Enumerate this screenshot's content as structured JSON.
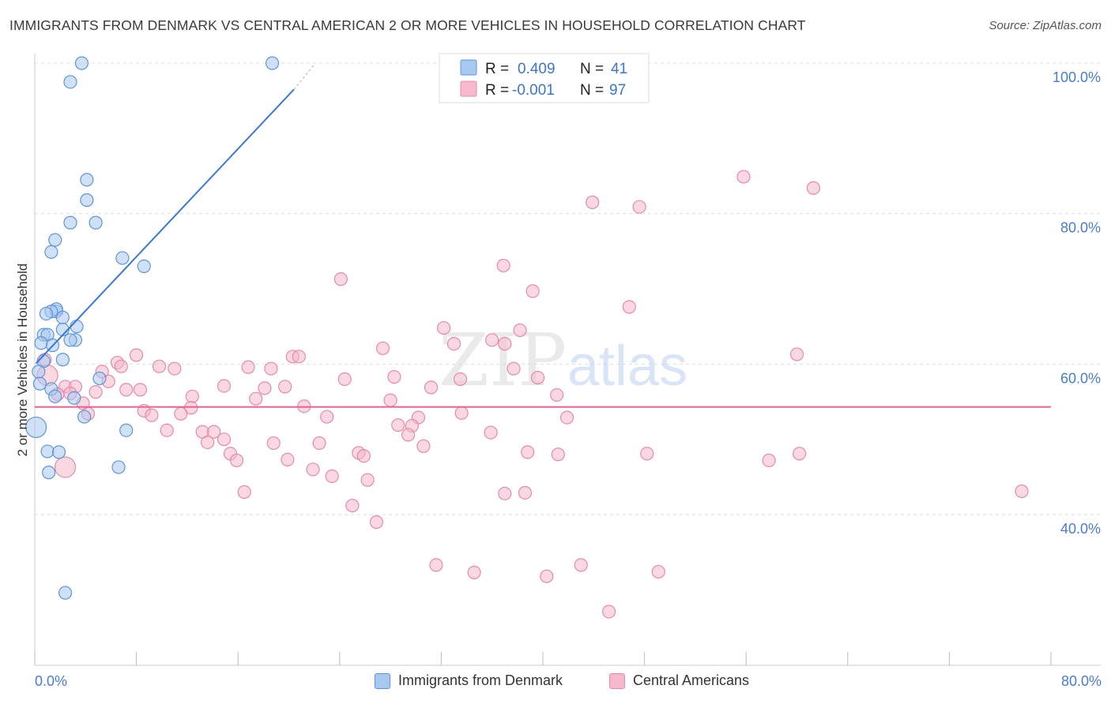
{
  "title": "IMMIGRANTS FROM DENMARK VS CENTRAL AMERICAN 2 OR MORE VEHICLES IN HOUSEHOLD CORRELATION CHART",
  "source": "Source: ZipAtlas.com",
  "watermark": {
    "zip": "ZIP",
    "atlas": "atlas"
  },
  "colors": {
    "blue_fill": "#a9c8f0",
    "blue_stroke": "#5f94d8",
    "blue_line": "#3a78d0",
    "pink_fill": "#f6b8cb",
    "pink_stroke": "#e58aa8",
    "pink_line": "#e06490",
    "tick_text": "#4a7cc9",
    "grid": "#dddddd"
  },
  "legend": {
    "rows": [
      {
        "r_label": "R =",
        "r_value": "0.409",
        "n_label": "N =",
        "n_value": "41",
        "series": "blue"
      },
      {
        "r_label": "R =",
        "r_value": "-0.001",
        "n_label": "N =",
        "n_value": "97",
        "series": "pink"
      }
    ]
  },
  "bottom_legend": {
    "blue_label": "Immigrants from Denmark",
    "pink_label": "Central Americans"
  },
  "chart_data": {
    "type": "scatter",
    "xlabel": "",
    "ylabel": "2 or more Vehicles in Household",
    "xlim": [
      0,
      80
    ],
    "ylim": [
      20,
      102
    ],
    "x_tick_labels": [
      "0.0%",
      "80.0%"
    ],
    "y_ticks": [
      40,
      60,
      80,
      100
    ],
    "y_tick_labels": [
      "40.0%",
      "60.0%",
      "80.0%",
      "100.0%"
    ],
    "grid": "horizontal dashed",
    "legend_placement": "top-center",
    "series": [
      {
        "name": "Immigrants from Denmark",
        "color": "blue",
        "R": 0.409,
        "N": 41,
        "trend": {
          "x": [
            0.1,
            20.4
          ],
          "y": [
            60.1,
            96.5
          ],
          "dashed_extension": {
            "x": [
              20.4,
              22.0
            ],
            "y": [
              96.5,
              99.8
            ]
          }
        },
        "points": [
          {
            "x": 3.7,
            "y": 100
          },
          {
            "x": 18.7,
            "y": 100
          },
          {
            "x": 2.8,
            "y": 97.5
          },
          {
            "x": 4.1,
            "y": 84.5
          },
          {
            "x": 4.1,
            "y": 81.8
          },
          {
            "x": 2.8,
            "y": 78.8
          },
          {
            "x": 4.8,
            "y": 78.8
          },
          {
            "x": 1.6,
            "y": 76.5
          },
          {
            "x": 1.3,
            "y": 74.9
          },
          {
            "x": 6.9,
            "y": 74.1
          },
          {
            "x": 8.6,
            "y": 73.0
          },
          {
            "x": 1.7,
            "y": 67.0
          },
          {
            "x": 1.7,
            "y": 67.3
          },
          {
            "x": 1.3,
            "y": 67.0
          },
          {
            "x": 0.9,
            "y": 66.7
          },
          {
            "x": 2.2,
            "y": 66.2
          },
          {
            "x": 3.3,
            "y": 65.0
          },
          {
            "x": 2.2,
            "y": 64.6
          },
          {
            "x": 0.7,
            "y": 63.9
          },
          {
            "x": 1.0,
            "y": 63.9
          },
          {
            "x": 3.2,
            "y": 63.2
          },
          {
            "x": 2.8,
            "y": 63.2
          },
          {
            "x": 0.5,
            "y": 62.8
          },
          {
            "x": 1.4,
            "y": 62.5
          },
          {
            "x": 2.2,
            "y": 60.6
          },
          {
            "x": 0.7,
            "y": 60.4
          },
          {
            "x": 0.3,
            "y": 59.0
          },
          {
            "x": 5.1,
            "y": 58.1
          },
          {
            "x": 0.4,
            "y": 57.4
          },
          {
            "x": 1.3,
            "y": 56.7
          },
          {
            "x": 1.6,
            "y": 55.7
          },
          {
            "x": 3.1,
            "y": 55.5
          },
          {
            "x": 3.9,
            "y": 53.0
          },
          {
            "x": 0.1,
            "y": 51.6,
            "size": "large"
          },
          {
            "x": 7.2,
            "y": 51.2
          },
          {
            "x": 1.0,
            "y": 48.4
          },
          {
            "x": 1.9,
            "y": 48.3
          },
          {
            "x": 6.6,
            "y": 46.3
          },
          {
            "x": 1.1,
            "y": 45.6
          },
          {
            "x": 2.4,
            "y": 29.6
          }
        ]
      },
      {
        "name": "Central Americans",
        "color": "pink",
        "R": -0.001,
        "N": 97,
        "trend": {
          "x": [
            0,
            80
          ],
          "y": [
            54.3,
            54.3
          ]
        },
        "points": [
          {
            "x": 55.8,
            "y": 84.9
          },
          {
            "x": 61.3,
            "y": 83.4
          },
          {
            "x": 43.9,
            "y": 81.5
          },
          {
            "x": 47.6,
            "y": 80.9
          },
          {
            "x": 24.1,
            "y": 71.3
          },
          {
            "x": 36.9,
            "y": 73.1
          },
          {
            "x": 39.2,
            "y": 69.7
          },
          {
            "x": 46.8,
            "y": 67.6
          },
          {
            "x": 32.2,
            "y": 64.8
          },
          {
            "x": 38.2,
            "y": 64.5
          },
          {
            "x": 36.0,
            "y": 63.2
          },
          {
            "x": 33.0,
            "y": 62.7
          },
          {
            "x": 37.0,
            "y": 62.7
          },
          {
            "x": 27.4,
            "y": 62.1
          },
          {
            "x": 60.0,
            "y": 61.3
          },
          {
            "x": 8.0,
            "y": 61.2
          },
          {
            "x": 20.3,
            "y": 61.0
          },
          {
            "x": 20.8,
            "y": 61.0
          },
          {
            "x": 0.8,
            "y": 60.6
          },
          {
            "x": 6.5,
            "y": 60.2
          },
          {
            "x": 6.8,
            "y": 59.7
          },
          {
            "x": 9.8,
            "y": 59.7
          },
          {
            "x": 11.0,
            "y": 59.4
          },
          {
            "x": 16.8,
            "y": 59.6
          },
          {
            "x": 18.6,
            "y": 59.4
          },
          {
            "x": 37.7,
            "y": 59.4
          },
          {
            "x": 5.3,
            "y": 59.0
          },
          {
            "x": 1.0,
            "y": 58.5,
            "size": "large"
          },
          {
            "x": 28.3,
            "y": 58.3
          },
          {
            "x": 33.5,
            "y": 58.0
          },
          {
            "x": 24.4,
            "y": 58.0
          },
          {
            "x": 39.6,
            "y": 58.2
          },
          {
            "x": 5.8,
            "y": 57.7
          },
          {
            "x": 2.4,
            "y": 57.0
          },
          {
            "x": 3.2,
            "y": 57.0
          },
          {
            "x": 14.9,
            "y": 57.1
          },
          {
            "x": 18.1,
            "y": 56.8
          },
          {
            "x": 19.7,
            "y": 57.0
          },
          {
            "x": 31.2,
            "y": 56.9
          },
          {
            "x": 7.2,
            "y": 56.6
          },
          {
            "x": 8.3,
            "y": 56.6
          },
          {
            "x": 4.8,
            "y": 56.3
          },
          {
            "x": 2.8,
            "y": 56.1
          },
          {
            "x": 1.8,
            "y": 56.0
          },
          {
            "x": 41.1,
            "y": 55.9
          },
          {
            "x": 12.4,
            "y": 55.7
          },
          {
            "x": 17.4,
            "y": 55.4
          },
          {
            "x": 28.0,
            "y": 55.2
          },
          {
            "x": 3.8,
            "y": 54.8
          },
          {
            "x": 12.3,
            "y": 54.2
          },
          {
            "x": 21.2,
            "y": 54.4
          },
          {
            "x": 8.6,
            "y": 53.8
          },
          {
            "x": 9.2,
            "y": 53.2
          },
          {
            "x": 11.5,
            "y": 53.4
          },
          {
            "x": 33.6,
            "y": 53.5
          },
          {
            "x": 23.0,
            "y": 53.0
          },
          {
            "x": 30.2,
            "y": 52.9
          },
          {
            "x": 41.9,
            "y": 52.9
          },
          {
            "x": 4.2,
            "y": 53.4
          },
          {
            "x": 28.6,
            "y": 51.9
          },
          {
            "x": 29.7,
            "y": 51.8
          },
          {
            "x": 10.4,
            "y": 51.2
          },
          {
            "x": 13.2,
            "y": 51.0
          },
          {
            "x": 14.1,
            "y": 51.0
          },
          {
            "x": 35.9,
            "y": 50.9
          },
          {
            "x": 29.4,
            "y": 50.6
          },
          {
            "x": 14.9,
            "y": 50.0
          },
          {
            "x": 13.6,
            "y": 49.6
          },
          {
            "x": 18.8,
            "y": 49.5
          },
          {
            "x": 22.4,
            "y": 49.5
          },
          {
            "x": 30.6,
            "y": 49.1
          },
          {
            "x": 15.4,
            "y": 48.1
          },
          {
            "x": 25.5,
            "y": 48.2
          },
          {
            "x": 38.8,
            "y": 48.3
          },
          {
            "x": 41.2,
            "y": 48.0
          },
          {
            "x": 48.2,
            "y": 48.1
          },
          {
            "x": 60.2,
            "y": 48.1
          },
          {
            "x": 25.9,
            "y": 47.8
          },
          {
            "x": 15.9,
            "y": 47.2
          },
          {
            "x": 19.9,
            "y": 47.3
          },
          {
            "x": 57.8,
            "y": 47.2
          },
          {
            "x": 2.4,
            "y": 46.3,
            "size": "large"
          },
          {
            "x": 21.9,
            "y": 46.0
          },
          {
            "x": 23.4,
            "y": 45.1
          },
          {
            "x": 26.2,
            "y": 44.6
          },
          {
            "x": 16.5,
            "y": 43.0
          },
          {
            "x": 37.0,
            "y": 42.8
          },
          {
            "x": 38.6,
            "y": 42.9
          },
          {
            "x": 77.7,
            "y": 43.1
          },
          {
            "x": 25.0,
            "y": 41.2
          },
          {
            "x": 26.9,
            "y": 39.0
          },
          {
            "x": 31.6,
            "y": 33.3
          },
          {
            "x": 43.0,
            "y": 33.3
          },
          {
            "x": 34.6,
            "y": 32.3
          },
          {
            "x": 49.1,
            "y": 32.4
          },
          {
            "x": 40.3,
            "y": 31.8
          },
          {
            "x": 45.2,
            "y": 27.1
          }
        ]
      }
    ]
  }
}
